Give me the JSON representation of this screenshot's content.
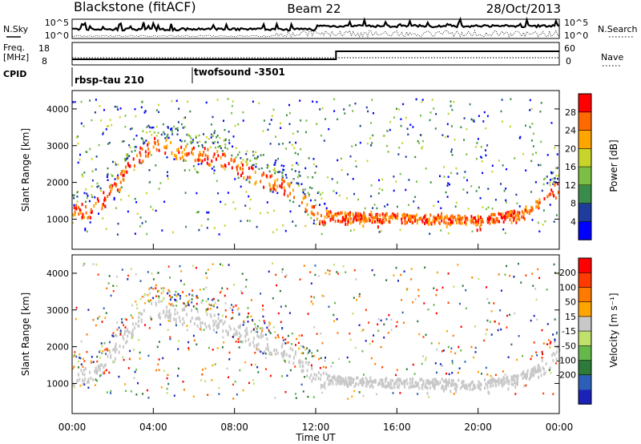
{
  "chart_data": {
    "type": "heatmap",
    "title": "Blackstone (fitACF)",
    "beam": "Beam 22",
    "date": "28/Oct/2013",
    "header_labels": {
      "n_sky": "N.Sky",
      "n_search": "N.Search",
      "freq": "Freq.",
      "freq_unit": "[MHz]",
      "nave": "Nave",
      "cpid": "CPID"
    },
    "noise_ticks_left": [
      "10^5",
      "10^0"
    ],
    "noise_ticks_right": [
      "10^5",
      "10^0"
    ],
    "freq_ticks": [
      "18",
      "8"
    ],
    "nave_ticks": [
      "60",
      "0"
    ],
    "cpid_segments": [
      {
        "label": "rbsp-tau 210",
        "start_hour": 0.0
      },
      {
        "label": "twofsound -3501",
        "start_hour": 6.0
      }
    ],
    "xlabel": "Time UT",
    "x_ticks": [
      "00:00",
      "04:00",
      "08:00",
      "12:00",
      "16:00",
      "20:00",
      "00:00"
    ],
    "x_range_hours": [
      0,
      24
    ],
    "ylabel": "Slant Range [km]",
    "y_ticks": [
      "1000",
      "2000",
      "3000",
      "4000"
    ],
    "y_range_km": [
      180,
      4500
    ],
    "panels": [
      {
        "name": "power",
        "colorbar_label": "Power [dB]",
        "colorbar_ticks": [
          "28",
          "24",
          "20",
          "16",
          "12",
          "8",
          "4"
        ],
        "colors": [
          "#0000ff",
          "#1d3c9c",
          "#3a8c4a",
          "#7bc043",
          "#c8d42a",
          "#ffa500",
          "#ff6a00",
          "#ff0000"
        ],
        "range_db": [
          0,
          30
        ]
      },
      {
        "name": "velocity",
        "colorbar_label": "Velocity [m s⁻¹]",
        "colorbar_ticks": [
          "200",
          "100",
          "50",
          "15",
          "-15",
          "-50",
          "-100",
          "-200"
        ],
        "colors": [
          "#1a22b8",
          "#2e5fb8",
          "#2e7a3a",
          "#66b84a",
          "#bfe06a",
          "#c8c8c8",
          "#ffa500",
          "#ff7a00",
          "#ff3a00",
          "#ff0000"
        ],
        "range_ms": [
          -250,
          250
        ]
      }
    ],
    "main_echo_band_km": [
      {
        "hour": 0.0,
        "range": 1180
      },
      {
        "hour": 1.0,
        "range": 1300
      },
      {
        "hour": 2.0,
        "range": 1800
      },
      {
        "hour": 3.0,
        "range": 2600
      },
      {
        "hour": 4.0,
        "range": 3100
      },
      {
        "hour": 5.0,
        "range": 2900
      },
      {
        "hour": 6.0,
        "range": 2800
      },
      {
        "hour": 7.0,
        "range": 2700
      },
      {
        "hour": 8.0,
        "range": 2500
      },
      {
        "hour": 9.0,
        "range": 2200
      },
      {
        "hour": 10.0,
        "range": 2000
      },
      {
        "hour": 11.0,
        "range": 1700
      },
      {
        "hour": 12.0,
        "range": 1150
      },
      {
        "hour": 13.0,
        "range": 1050
      },
      {
        "hour": 16.0,
        "range": 1000
      },
      {
        "hour": 20.0,
        "range": 950
      },
      {
        "hour": 22.0,
        "range": 1100
      },
      {
        "hour": 23.0,
        "range": 1400
      },
      {
        "hour": 24.0,
        "range": 1900
      }
    ]
  }
}
